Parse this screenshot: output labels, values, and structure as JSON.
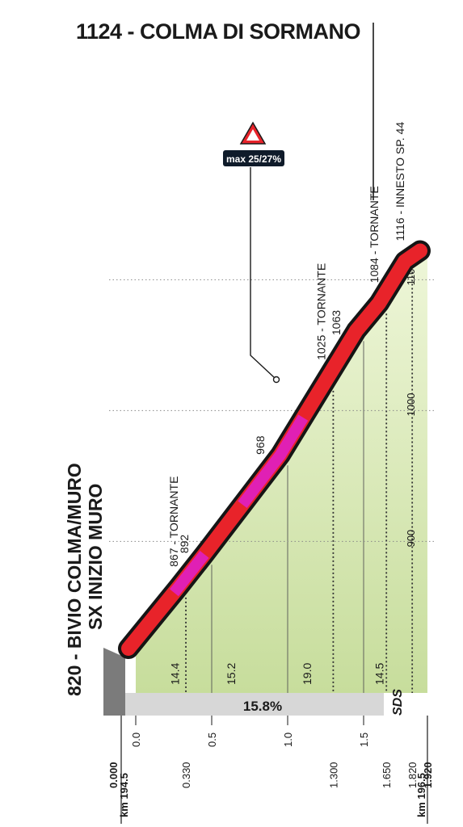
{
  "summit_label": "1124 - COLMA DI SORMANO",
  "start_label_line1": "820 - BIVIO COLMA/MURO",
  "start_label_line2": "SX INIZIO MURO",
  "max_badge": "max 25/27%",
  "avg_gradient": "15.8%",
  "brand": "SDS",
  "altitude_ticks": [
    "1100",
    "1000",
    "900"
  ],
  "point_labels": [
    {
      "km": 0.33,
      "text": "867 - TORNANTE"
    },
    {
      "km": 0.4,
      "text": "892"
    },
    {
      "km": 0.9,
      "text": "968"
    },
    {
      "km": 1.3,
      "text": "1025 - TORNANTE"
    },
    {
      "km": 1.4,
      "text": "1063"
    },
    {
      "km": 1.65,
      "text": "1084 - TORNANTE"
    },
    {
      "km": 1.82,
      "text": "1116 - INNESTO SP. 44"
    }
  ],
  "colors": {
    "road": "#e8232a",
    "steep": "#e020b4",
    "outline": "#151515",
    "fill_top": "#eef6d8",
    "fill_bottom": "#c7dd9c",
    "base_bar": "#d7d7d7",
    "start_block": "#7b7b7b"
  },
  "chart_data": {
    "type": "area",
    "title": "1124 - COLMA DI SORMANO",
    "xlabel": "",
    "ylabel": "",
    "xlim": [
      0,
      1.92
    ],
    "ylim": [
      820,
      1124
    ],
    "grid": true,
    "profile": [
      {
        "km": 0.0,
        "alt": 820
      },
      {
        "km": 0.33,
        "alt": 867
      },
      {
        "km": 0.5,
        "alt": 892
      },
      {
        "km": 1.0,
        "alt": 968
      },
      {
        "km": 1.3,
        "alt": 1025
      },
      {
        "km": 1.5,
        "alt": 1063
      },
      {
        "km": 1.65,
        "alt": 1084
      },
      {
        "km": 1.82,
        "alt": 1116
      },
      {
        "km": 1.92,
        "alt": 1124
      }
    ],
    "steep_sections": [
      [
        0.3,
        0.5
      ],
      [
        0.75,
        1.15
      ]
    ],
    "segments": [
      {
        "label": "14.4",
        "from": 0.0,
        "to": 0.5
      },
      {
        "label": "15.2",
        "from": 0.5,
        "to": 1.0
      },
      {
        "label": "19.0",
        "from": 1.0,
        "to": 1.5
      },
      {
        "label": "14.5",
        "from": 1.5,
        "to": 1.92
      }
    ],
    "x_ticks": [
      "0.0",
      "0.5",
      "1.0",
      "1.5"
    ],
    "distance_marks": [
      "0.000",
      "0.330",
      "1.300",
      "1.650",
      "1.820",
      "1.920"
    ],
    "km_start": "km 194.5",
    "km_end": "km 196.5",
    "y_ticks": [
      "1100",
      "1000",
      "900"
    ]
  }
}
